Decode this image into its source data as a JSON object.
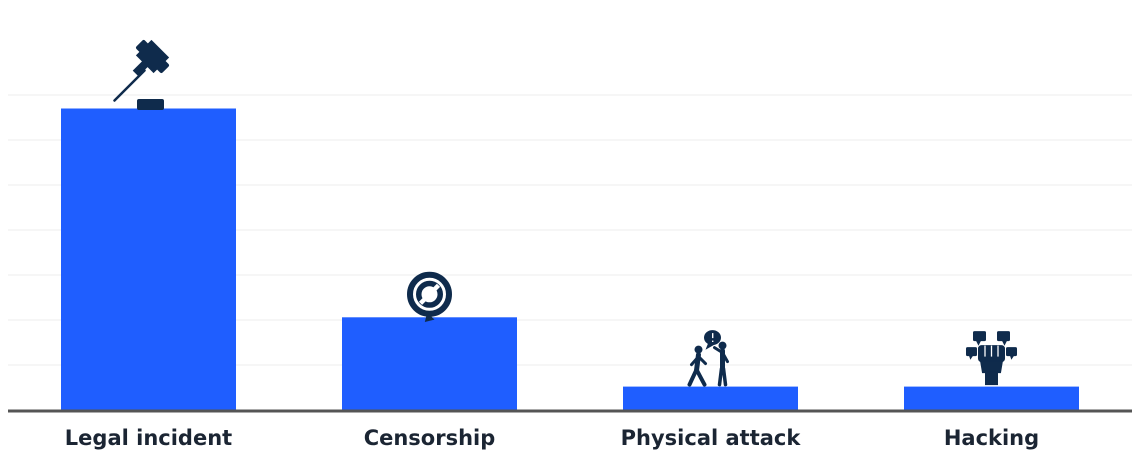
{
  "colors": {
    "bar": "#1f5eff",
    "icon": "#0f2b4c",
    "grid": "#ececec",
    "axis": "#555555"
  },
  "chart_data": {
    "type": "bar",
    "categories": [
      "Legal incident",
      "Censorship",
      "Physical attack",
      "Hacking"
    ],
    "values": [
      33.5,
      10.3,
      2.6,
      2.6
    ],
    "icons": [
      "gavel-icon",
      "censorship-icon",
      "physical-attack-icon",
      "hacking-fist-icon"
    ],
    "ylim": [
      0,
      40
    ],
    "grid": true,
    "title": "",
    "xlabel": "",
    "ylabel": ""
  }
}
